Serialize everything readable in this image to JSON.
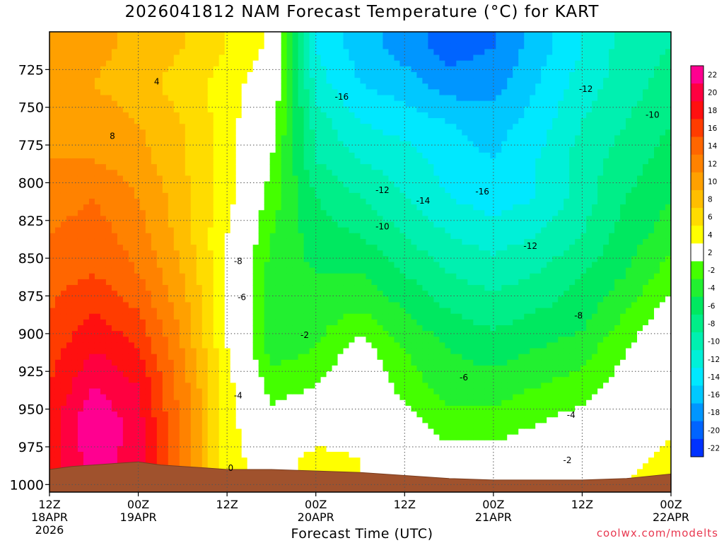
{
  "page": {
    "title": "2026041812 NAM Forecast Temperature (°C) for KART",
    "credit": "coolwx.com/modelts"
  },
  "chart_data": {
    "type": "heatmap",
    "title": "2026041812 NAM Forecast Temperature (°C) for KART",
    "xlabel": "Forecast Time (UTC)",
    "ylabel": "",
    "y_axis": {
      "ticks": [
        725,
        750,
        775,
        800,
        825,
        850,
        875,
        900,
        925,
        950,
        975,
        1000
      ],
      "range": [
        1005,
        700
      ],
      "direction": "pressure decreasing upward"
    },
    "x_axis": {
      "ticks": [
        {
          "h": 0,
          "label": "12Z",
          "sub": "18APR",
          "sub2": "2026"
        },
        {
          "h": 12,
          "label": "00Z",
          "sub": "19APR",
          "sub2": ""
        },
        {
          "h": 24,
          "label": "12Z",
          "sub": "",
          "sub2": ""
        },
        {
          "h": 36,
          "label": "00Z",
          "sub": "20APR",
          "sub2": ""
        },
        {
          "h": 48,
          "label": "12Z",
          "sub": "",
          "sub2": ""
        },
        {
          "h": 60,
          "label": "00Z",
          "sub": "21APR",
          "sub2": ""
        },
        {
          "h": 72,
          "label": "12Z",
          "sub": "",
          "sub2": ""
        },
        {
          "h": 84,
          "label": "00Z",
          "sub": "22APR",
          "sub2": ""
        }
      ],
      "range_hours": [
        0,
        84
      ]
    },
    "grid": true,
    "colorbar": {
      "placement": "right",
      "levels": [
        {
          "label": "22",
          "color": "#ff0090"
        },
        {
          "label": "20",
          "color": "#ff0040"
        },
        {
          "label": "18",
          "color": "#ff1010"
        },
        {
          "label": "16",
          "color": "#ff3c00"
        },
        {
          "label": "14",
          "color": "#ff6600"
        },
        {
          "label": "12",
          "color": "#ff8200"
        },
        {
          "label": "10",
          "color": "#ffa000"
        },
        {
          "label": "8",
          "color": "#ffbe00"
        },
        {
          "label": "6",
          "color": "#ffdc00"
        },
        {
          "label": "4",
          "color": "#ffff00"
        },
        {
          "label": "2",
          "color": "#ffffff"
        },
        {
          "label": "-2",
          "color": "#44ff00"
        },
        {
          "label": "-4",
          "color": "#22f030"
        },
        {
          "label": "-6",
          "color": "#00e860"
        },
        {
          "label": "-8",
          "color": "#00ee88"
        },
        {
          "label": "-10",
          "color": "#00f0b0"
        },
        {
          "label": "-12",
          "color": "#00f0d8"
        },
        {
          "label": "-14",
          "color": "#00e8ff"
        },
        {
          "label": "-16",
          "color": "#00c8ff"
        },
        {
          "label": "-18",
          "color": "#0096ff"
        },
        {
          "label": "-20",
          "color": "#0064ff"
        },
        {
          "label": "-22",
          "color": "#0032ff"
        }
      ]
    },
    "temperature_rows": [
      {
        "p": 710,
        "t": [
          9,
          8.5,
          7.5,
          6,
          4,
          1.5,
          -14,
          -17,
          -19,
          -21,
          -20,
          -17,
          -14,
          -11,
          -10
        ]
      },
      {
        "p": 735,
        "t": [
          8,
          8,
          7,
          5,
          3,
          0.5,
          -13,
          -16,
          -17,
          -19,
          -19,
          -16,
          -13,
          -11,
          -9
        ]
      },
      {
        "p": 760,
        "t": [
          9,
          9,
          8,
          6,
          3,
          -1,
          -11,
          -14,
          -15,
          -16,
          -17,
          -15,
          -12,
          -10,
          -8
        ]
      },
      {
        "p": 785,
        "t": [
          10,
          10,
          9,
          6,
          3,
          -2,
          -10,
          -12,
          -13,
          -15,
          -16,
          -14,
          -11,
          -9,
          -7
        ]
      },
      {
        "p": 810,
        "t": [
          11,
          12,
          10,
          7,
          3,
          -3,
          -8,
          -10,
          -12,
          -14,
          -15,
          -14,
          -11,
          -8,
          -6
        ]
      },
      {
        "p": 835,
        "t": [
          12,
          13,
          11,
          7,
          2,
          -4,
          -7,
          -8,
          -10,
          -12,
          -13,
          -12,
          -10,
          -7,
          -5
        ]
      },
      {
        "p": 860,
        "t": [
          13,
          14,
          12,
          8,
          2,
          -5,
          -6,
          -6,
          -8,
          -10,
          -11,
          -10,
          -8,
          -6,
          -3
        ]
      },
      {
        "p": 885,
        "t": [
          14,
          16,
          14,
          9,
          2,
          -5,
          -5,
          -4,
          -6,
          -8,
          -9,
          -8,
          -7,
          -4,
          -1
        ]
      },
      {
        "p": 910,
        "t": [
          15,
          18,
          16,
          10,
          2,
          -5,
          -4,
          -1,
          -4,
          -6,
          -7,
          -6,
          -5,
          -2,
          0.5
        ]
      },
      {
        "p": 935,
        "t": [
          16,
          20,
          18,
          11,
          3,
          -3,
          -2,
          0.5,
          -3,
          -5,
          -5,
          -4,
          -3,
          -1,
          0
        ]
      },
      {
        "p": 960,
        "t": [
          17,
          22,
          19,
          11,
          3,
          -1,
          0.5,
          1,
          -1,
          -3,
          -3,
          -2,
          -1,
          0.5,
          1.5
        ]
      },
      {
        "p": 985,
        "t": [
          17,
          21,
          19,
          11,
          3,
          0.5,
          3,
          2,
          0.5,
          -1,
          -1,
          0,
          0.5,
          1,
          3
        ]
      },
      {
        "p": 1000,
        "t": [
          17,
          20,
          18,
          11,
          3,
          1,
          3,
          2,
          1,
          0,
          0,
          0.5,
          1,
          2,
          4
        ]
      }
    ],
    "time_hours": [
      0,
      6,
      12,
      18,
      24,
      30,
      36,
      42,
      48,
      54,
      60,
      66,
      72,
      78,
      84
    ],
    "surface_pressure": [
      [
        0,
        990
      ],
      [
        3,
        988
      ],
      [
        6,
        987
      ],
      [
        9,
        986
      ],
      [
        12,
        985
      ],
      [
        15,
        987
      ],
      [
        18,
        988
      ],
      [
        21,
        989
      ],
      [
        24,
        990
      ],
      [
        30,
        990
      ],
      [
        36,
        991
      ],
      [
        42,
        992
      ],
      [
        48,
        994
      ],
      [
        54,
        996
      ],
      [
        60,
        997
      ],
      [
        66,
        997
      ],
      [
        72,
        997
      ],
      [
        78,
        996
      ],
      [
        84,
        993
      ]
    ],
    "contour_labels": [
      {
        "h": 14.5,
        "p": 733,
        "text": "4"
      },
      {
        "h": 8.5,
        "p": 769,
        "text": "8"
      },
      {
        "h": 39.5,
        "p": 743,
        "text": "-16"
      },
      {
        "h": 45,
        "p": 805,
        "text": "-12"
      },
      {
        "h": 50.5,
        "p": 812,
        "text": "-14"
      },
      {
        "h": 58.5,
        "p": 806,
        "text": "-16"
      },
      {
        "h": 45,
        "p": 829,
        "text": "-10"
      },
      {
        "h": 72.5,
        "p": 738,
        "text": "-12"
      },
      {
        "h": 81.5,
        "p": 755,
        "text": "-10"
      },
      {
        "h": 65,
        "p": 842,
        "text": "-12"
      },
      {
        "h": 25.5,
        "p": 852,
        "text": "-8"
      },
      {
        "h": 26,
        "p": 876,
        "text": "-6"
      },
      {
        "h": 34.5,
        "p": 901,
        "text": "-2"
      },
      {
        "h": 25.5,
        "p": 941,
        "text": "-4"
      },
      {
        "h": 56,
        "p": 929,
        "text": "-6"
      },
      {
        "h": 71.5,
        "p": 888,
        "text": "-8"
      },
      {
        "h": 70.5,
        "p": 954,
        "text": "-4"
      },
      {
        "h": 70,
        "p": 984,
        "text": "-2"
      },
      {
        "h": 24.5,
        "p": 989,
        "text": "0"
      }
    ]
  }
}
